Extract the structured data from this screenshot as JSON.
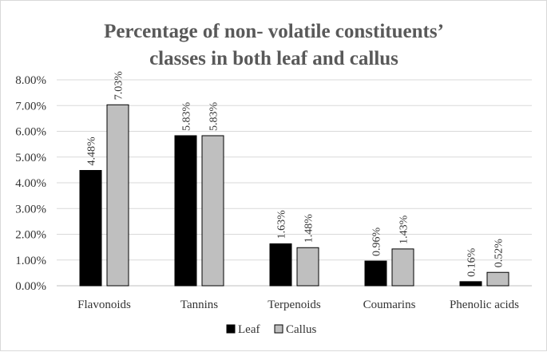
{
  "chart_data": {
    "type": "bar",
    "title_lines": [
      "Percentage of non- volatile constituents’",
      "classes in both leaf and callus"
    ],
    "categories": [
      "Flavonoids",
      "Tannins",
      "Terpenoids",
      "Coumarins",
      "Phenolic acids"
    ],
    "series": [
      {
        "name": "Leaf",
        "values": [
          4.48,
          5.83,
          1.63,
          0.96,
          0.16
        ],
        "labels": [
          "4.48%",
          "5.83%",
          "1.63%",
          "0.96%",
          "0.16%"
        ],
        "color": "#000000"
      },
      {
        "name": "Callus",
        "values": [
          7.03,
          5.83,
          1.48,
          1.43,
          0.52
        ],
        "labels": [
          "7.03%",
          "5.83%",
          "1.48%",
          "1.43%",
          "0.52%"
        ],
        "color": "#bfbfbf"
      }
    ],
    "yticks": [
      "0.00%",
      "1.00%",
      "2.00%",
      "3.00%",
      "4.00%",
      "5.00%",
      "6.00%",
      "7.00%",
      "8.00%"
    ],
    "ylim": [
      0,
      8
    ],
    "xlabel": "",
    "ylabel": "",
    "grid": true,
    "legend_position": "bottom"
  }
}
